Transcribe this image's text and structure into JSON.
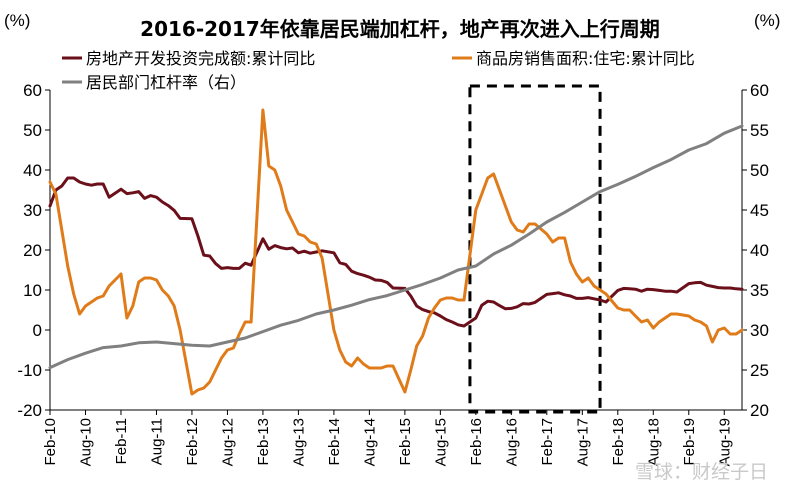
{
  "chart_data": {
    "type": "line",
    "title": "2016-2017年依靠居民端加杠杆，地产再次进入上行周期",
    "y_left_unit": "(%)",
    "y_right_unit": "(%)",
    "ylim_left": [
      -20,
      60
    ],
    "yticks_left": [
      "60",
      "50",
      "40",
      "30",
      "20",
      "10",
      "0",
      "-10",
      "-20"
    ],
    "ylim_right": [
      20,
      60
    ],
    "yticks_right": [
      "60",
      "55",
      "50",
      "45",
      "40",
      "35",
      "30",
      "25",
      "20"
    ],
    "x_tick_labels": [
      "Feb-10",
      "Aug-10",
      "Feb-11",
      "Aug-11",
      "Feb-12",
      "Aug-12",
      "Feb-13",
      "Aug-13",
      "Feb-14",
      "Aug-14",
      "Feb-15",
      "Aug-15",
      "Feb-16",
      "Aug-16",
      "Feb-17",
      "Aug-17",
      "Feb-18",
      "Aug-18",
      "Feb-19",
      "Aug-19"
    ],
    "x_start": "2010-02",
    "x_end": "2019-11",
    "grid": false,
    "legend_position": "top-left",
    "highlight_box": {
      "from": "2016-01",
      "to": "2017-11",
      "style": "dashed"
    },
    "series": [
      {
        "name": "房地产开发投资完成额:累计同比",
        "axis": "left",
        "color": "#6b0f1a",
        "values": [
          [
            "2010-02",
            31
          ],
          [
            "2010-03",
            35
          ],
          [
            "2010-04",
            36
          ],
          [
            "2010-05",
            38
          ],
          [
            "2010-06",
            38
          ],
          [
            "2010-07",
            37
          ],
          [
            "2010-08",
            36.5
          ],
          [
            "2010-09",
            36.2
          ],
          [
            "2010-10",
            36.5
          ],
          [
            "2010-11",
            36.5
          ],
          [
            "2010-12",
            33.2
          ],
          [
            "2011-02",
            35.2
          ],
          [
            "2011-03",
            34.1
          ],
          [
            "2011-04",
            34.3
          ],
          [
            "2011-05",
            34.6
          ],
          [
            "2011-06",
            32.9
          ],
          [
            "2011-07",
            33.6
          ],
          [
            "2011-08",
            33.2
          ],
          [
            "2011-09",
            32.0
          ],
          [
            "2011-10",
            31.1
          ],
          [
            "2011-11",
            29.9
          ],
          [
            "2011-12",
            27.9
          ],
          [
            "2012-02",
            27.8
          ],
          [
            "2012-03",
            23.5
          ],
          [
            "2012-04",
            18.7
          ],
          [
            "2012-05",
            18.5
          ],
          [
            "2012-06",
            16.6
          ],
          [
            "2012-07",
            15.4
          ],
          [
            "2012-08",
            15.6
          ],
          [
            "2012-09",
            15.4
          ],
          [
            "2012-10",
            15.4
          ],
          [
            "2012-11",
            16.7
          ],
          [
            "2012-12",
            16.2
          ],
          [
            "2013-02",
            22.8
          ],
          [
            "2013-03",
            20.2
          ],
          [
            "2013-04",
            21.1
          ],
          [
            "2013-05",
            20.6
          ],
          [
            "2013-06",
            20.3
          ],
          [
            "2013-07",
            20.5
          ],
          [
            "2013-08",
            19.3
          ],
          [
            "2013-09",
            19.7
          ],
          [
            "2013-10",
            19.2
          ],
          [
            "2013-11",
            19.5
          ],
          [
            "2013-12",
            19.8
          ],
          [
            "2014-02",
            19.3
          ],
          [
            "2014-03",
            16.8
          ],
          [
            "2014-04",
            16.4
          ],
          [
            "2014-05",
            14.7
          ],
          [
            "2014-06",
            14.1
          ],
          [
            "2014-07",
            13.7
          ],
          [
            "2014-08",
            13.2
          ],
          [
            "2014-09",
            12.5
          ],
          [
            "2014-10",
            12.4
          ],
          [
            "2014-11",
            11.9
          ],
          [
            "2014-12",
            10.5
          ],
          [
            "2015-02",
            10.4
          ],
          [
            "2015-03",
            8.5
          ],
          [
            "2015-04",
            6.0
          ],
          [
            "2015-05",
            5.1
          ],
          [
            "2015-06",
            4.6
          ],
          [
            "2015-07",
            4.3
          ],
          [
            "2015-08",
            3.5
          ],
          [
            "2015-09",
            2.6
          ],
          [
            "2015-10",
            2.0
          ],
          [
            "2015-11",
            1.3
          ],
          [
            "2015-12",
            1.0
          ],
          [
            "2016-02",
            3.0
          ],
          [
            "2016-03",
            6.2
          ],
          [
            "2016-04",
            7.2
          ],
          [
            "2016-05",
            7.0
          ],
          [
            "2016-06",
            6.1
          ],
          [
            "2016-07",
            5.3
          ],
          [
            "2016-08",
            5.4
          ],
          [
            "2016-09",
            5.8
          ],
          [
            "2016-10",
            6.6
          ],
          [
            "2016-11",
            6.5
          ],
          [
            "2016-12",
            6.9
          ],
          [
            "2017-02",
            8.9
          ],
          [
            "2017-03",
            9.1
          ],
          [
            "2017-04",
            9.3
          ],
          [
            "2017-05",
            8.8
          ],
          [
            "2017-06",
            8.5
          ],
          [
            "2017-07",
            7.9
          ],
          [
            "2017-08",
            7.9
          ],
          [
            "2017-09",
            8.1
          ],
          [
            "2017-10",
            7.8
          ],
          [
            "2017-11",
            7.5
          ],
          [
            "2017-12",
            7.0
          ],
          [
            "2018-02",
            9.9
          ],
          [
            "2018-03",
            10.4
          ],
          [
            "2018-04",
            10.3
          ],
          [
            "2018-05",
            10.2
          ],
          [
            "2018-06",
            9.7
          ],
          [
            "2018-07",
            10.2
          ],
          [
            "2018-08",
            10.1
          ],
          [
            "2018-09",
            9.9
          ],
          [
            "2018-10",
            9.7
          ],
          [
            "2018-11",
            9.7
          ],
          [
            "2018-12",
            9.5
          ],
          [
            "2019-02",
            11.6
          ],
          [
            "2019-03",
            11.8
          ],
          [
            "2019-04",
            11.9
          ],
          [
            "2019-05",
            11.2
          ],
          [
            "2019-06",
            10.9
          ],
          [
            "2019-07",
            10.6
          ],
          [
            "2019-08",
            10.5
          ],
          [
            "2019-09",
            10.5
          ],
          [
            "2019-10",
            10.3
          ],
          [
            "2019-11",
            10.2
          ]
        ]
      },
      {
        "name": "商品房销售面积:住宅:累计同比",
        "axis": "left",
        "color": "#e07b1a",
        "values": [
          [
            "2010-02",
            37
          ],
          [
            "2010-03",
            34
          ],
          [
            "2010-04",
            25
          ],
          [
            "2010-05",
            16
          ],
          [
            "2010-06",
            9
          ],
          [
            "2010-07",
            4
          ],
          [
            "2010-08",
            6
          ],
          [
            "2010-09",
            7
          ],
          [
            "2010-10",
            8
          ],
          [
            "2010-11",
            8.5
          ],
          [
            "2010-12",
            11
          ],
          [
            "2011-02",
            14
          ],
          [
            "2011-03",
            3
          ],
          [
            "2011-04",
            6
          ],
          [
            "2011-05",
            12
          ],
          [
            "2011-06",
            13
          ],
          [
            "2011-07",
            13
          ],
          [
            "2011-08",
            12.5
          ],
          [
            "2011-09",
            10
          ],
          [
            "2011-10",
            8.5
          ],
          [
            "2011-11",
            6
          ],
          [
            "2011-12",
            0
          ],
          [
            "2012-02",
            -16
          ],
          [
            "2012-03",
            -15
          ],
          [
            "2012-04",
            -14.5
          ],
          [
            "2012-05",
            -13
          ],
          [
            "2012-06",
            -10
          ],
          [
            "2012-07",
            -7
          ],
          [
            "2012-08",
            -5
          ],
          [
            "2012-09",
            -4.5
          ],
          [
            "2012-10",
            -1
          ],
          [
            "2012-11",
            2
          ],
          [
            "2012-12",
            2
          ],
          [
            "2013-02",
            55
          ],
          [
            "2013-03",
            41
          ],
          [
            "2013-04",
            40
          ],
          [
            "2013-05",
            36
          ],
          [
            "2013-06",
            30
          ],
          [
            "2013-07",
            27
          ],
          [
            "2013-08",
            24
          ],
          [
            "2013-09",
            23.5
          ],
          [
            "2013-10",
            22
          ],
          [
            "2013-11",
            21.5
          ],
          [
            "2013-12",
            18
          ],
          [
            "2014-02",
            0
          ],
          [
            "2014-03",
            -5
          ],
          [
            "2014-04",
            -8
          ],
          [
            "2014-05",
            -9
          ],
          [
            "2014-06",
            -7
          ],
          [
            "2014-07",
            -8.5
          ],
          [
            "2014-08",
            -9.5
          ],
          [
            "2014-09",
            -9.5
          ],
          [
            "2014-10",
            -9.5
          ],
          [
            "2014-11",
            -9
          ],
          [
            "2014-12",
            -9
          ],
          [
            "2015-02",
            -15.5
          ],
          [
            "2015-03",
            -10
          ],
          [
            "2015-04",
            -4
          ],
          [
            "2015-05",
            -1.5
          ],
          [
            "2015-06",
            3
          ],
          [
            "2015-07",
            5.5
          ],
          [
            "2015-08",
            7.5
          ],
          [
            "2015-09",
            8
          ],
          [
            "2015-10",
            8
          ],
          [
            "2015-11",
            7.5
          ],
          [
            "2015-12",
            7.5
          ],
          [
            "2016-02",
            30
          ],
          [
            "2016-03",
            34
          ],
          [
            "2016-04",
            38
          ],
          [
            "2016-05",
            39
          ],
          [
            "2016-06",
            35
          ],
          [
            "2016-07",
            31
          ],
          [
            "2016-08",
            27
          ],
          [
            "2016-09",
            25
          ],
          [
            "2016-10",
            24.5
          ],
          [
            "2016-11",
            26.5
          ],
          [
            "2016-12",
            26.5
          ],
          [
            "2017-02",
            24
          ],
          [
            "2017-03",
            22
          ],
          [
            "2017-04",
            23
          ],
          [
            "2017-05",
            23
          ],
          [
            "2017-06",
            17
          ],
          [
            "2017-07",
            14
          ],
          [
            "2017-08",
            12
          ],
          [
            "2017-09",
            13
          ],
          [
            "2017-10",
            11
          ],
          [
            "2017-11",
            10
          ],
          [
            "2017-12",
            9
          ],
          [
            "2018-02",
            5.5
          ],
          [
            "2018-03",
            5
          ],
          [
            "2018-04",
            5
          ],
          [
            "2018-05",
            3.5
          ],
          [
            "2018-06",
            2
          ],
          [
            "2018-07",
            2.5
          ],
          [
            "2018-08",
            0.5
          ],
          [
            "2018-09",
            2
          ],
          [
            "2018-10",
            3
          ],
          [
            "2018-11",
            4
          ],
          [
            "2018-12",
            4
          ],
          [
            "2019-02",
            3.5
          ],
          [
            "2019-03",
            2.5
          ],
          [
            "2019-04",
            2
          ],
          [
            "2019-05",
            1
          ],
          [
            "2019-06",
            -3
          ],
          [
            "2019-07",
            0
          ],
          [
            "2019-08",
            0.5
          ],
          [
            "2019-09",
            -1
          ],
          [
            "2019-10",
            -1
          ],
          [
            "2019-11",
            0
          ]
        ]
      },
      {
        "name": "居民部门杠杆率（右）",
        "axis": "right",
        "color": "#808080",
        "values": [
          [
            "2010-02",
            25.3
          ],
          [
            "2010-05",
            26.3
          ],
          [
            "2010-08",
            27.1
          ],
          [
            "2010-11",
            27.8
          ],
          [
            "2011-02",
            28.0
          ],
          [
            "2011-05",
            28.4
          ],
          [
            "2011-08",
            28.5
          ],
          [
            "2011-11",
            28.3
          ],
          [
            "2012-02",
            28.1
          ],
          [
            "2012-05",
            28.0
          ],
          [
            "2012-08",
            28.5
          ],
          [
            "2012-11",
            29.0
          ],
          [
            "2013-02",
            29.8
          ],
          [
            "2013-05",
            30.6
          ],
          [
            "2013-08",
            31.2
          ],
          [
            "2013-11",
            32.0
          ],
          [
            "2014-02",
            32.5
          ],
          [
            "2014-05",
            33.1
          ],
          [
            "2014-08",
            33.8
          ],
          [
            "2014-11",
            34.3
          ],
          [
            "2015-02",
            35.0
          ],
          [
            "2015-05",
            35.7
          ],
          [
            "2015-08",
            36.5
          ],
          [
            "2015-11",
            37.5
          ],
          [
            "2016-02",
            38.0
          ],
          [
            "2016-05",
            39.5
          ],
          [
            "2016-08",
            40.6
          ],
          [
            "2016-11",
            42.0
          ],
          [
            "2017-02",
            43.5
          ],
          [
            "2017-05",
            44.7
          ],
          [
            "2017-08",
            46.0
          ],
          [
            "2017-11",
            47.3
          ],
          [
            "2018-02",
            48.2
          ],
          [
            "2018-05",
            49.2
          ],
          [
            "2018-08",
            50.3
          ],
          [
            "2018-11",
            51.3
          ],
          [
            "2019-02",
            52.5
          ],
          [
            "2019-05",
            53.3
          ],
          [
            "2019-08",
            54.6
          ],
          [
            "2019-11",
            55.5
          ]
        ]
      }
    ]
  },
  "watermark": "雪球：财经子日"
}
